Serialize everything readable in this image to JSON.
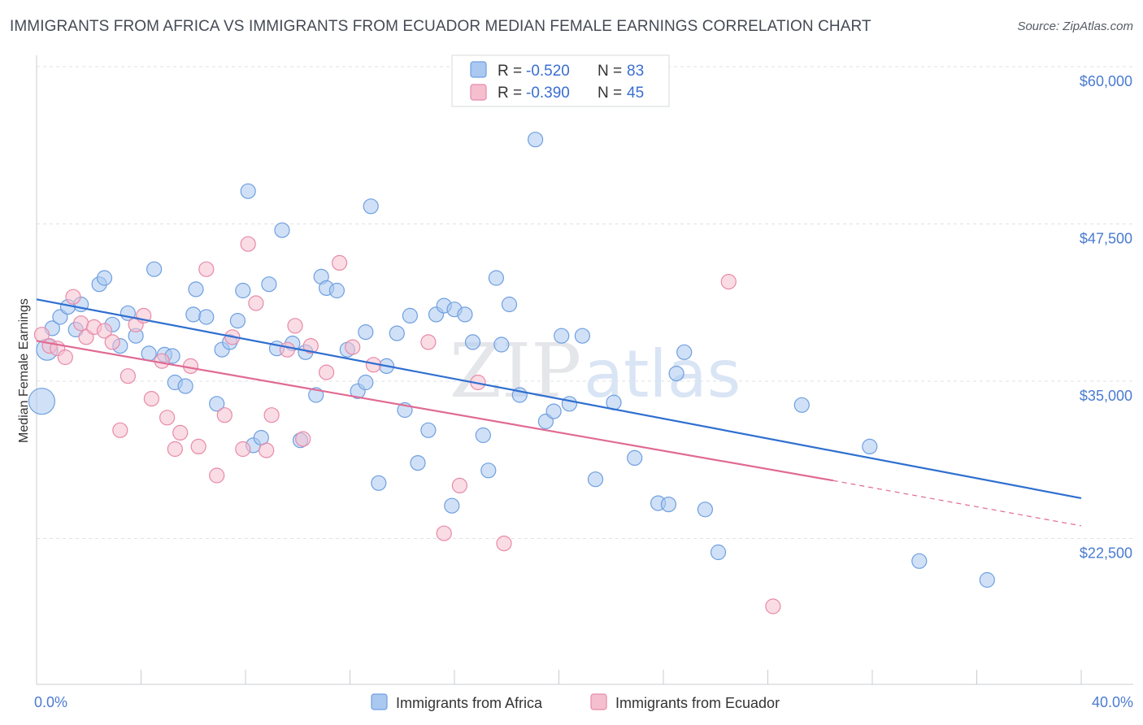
{
  "header": {
    "title": "IMMIGRANTS FROM AFRICA VS IMMIGRANTS FROM ECUADOR MEDIAN FEMALE EARNINGS CORRELATION CHART",
    "source": "Source: ZipAtlas.com"
  },
  "watermark": {
    "zip": "ZIP",
    "atlas": "atlas"
  },
  "chart_data": {
    "type": "scatter",
    "title": "IMMIGRANTS FROM AFRICA VS IMMIGRANTS FROM ECUADOR MEDIAN FEMALE EARNINGS CORRELATION CHART",
    "xlabel": "",
    "ylabel": "Median Female Earnings",
    "xlim": [
      0,
      40
    ],
    "ylim": [
      12000,
      62000
    ],
    "x_tick_labels": {
      "min": "0.0%",
      "max": "40.0%"
    },
    "y_ticks": [
      {
        "value": 22500,
        "label": "$22,500"
      },
      {
        "value": 35000,
        "label": "$35,000"
      },
      {
        "value": 47500,
        "label": "$47,500"
      },
      {
        "value": 60000,
        "label": "$60,000"
      }
    ],
    "grid": true,
    "legend_position": "top-center",
    "series": [
      {
        "name": "Immigrants from Africa",
        "color": "#6f9fe0",
        "fill": "#aac8f0",
        "line_color": "#2f6fd0",
        "r_label": "R =",
        "r_value": "-0.520",
        "n_label": "N =",
        "n_value": "83",
        "trend": {
          "x0": 0,
          "y0": 42600,
          "x1": 40,
          "y1": 26800,
          "dashed_from": null
        },
        "points": [
          [
            0.2,
            34500
          ],
          [
            0.4,
            38600
          ],
          [
            0.6,
            40300
          ],
          [
            0.9,
            41200
          ],
          [
            1.2,
            42000
          ],
          [
            1.7,
            42200
          ],
          [
            1.5,
            40200
          ],
          [
            2.4,
            43800
          ],
          [
            2.6,
            44300
          ],
          [
            2.9,
            40600
          ],
          [
            3.2,
            38900
          ],
          [
            3.5,
            41500
          ],
          [
            3.8,
            39700
          ],
          [
            4.3,
            38300
          ],
          [
            4.5,
            45000
          ],
          [
            4.9,
            38200
          ],
          [
            5.2,
            38100
          ],
          [
            5.3,
            36000
          ],
          [
            5.7,
            35700
          ],
          [
            6.0,
            41400
          ],
          [
            6.1,
            43400
          ],
          [
            6.5,
            41200
          ],
          [
            6.9,
            34300
          ],
          [
            7.1,
            38600
          ],
          [
            7.4,
            39200
          ],
          [
            7.7,
            40900
          ],
          [
            7.9,
            43300
          ],
          [
            8.1,
            51200
          ],
          [
            8.3,
            31000
          ],
          [
            8.6,
            31600
          ],
          [
            8.9,
            43800
          ],
          [
            9.2,
            38700
          ],
          [
            9.4,
            48100
          ],
          [
            9.8,
            39100
          ],
          [
            10.1,
            31400
          ],
          [
            10.3,
            38400
          ],
          [
            10.7,
            35000
          ],
          [
            10.9,
            44400
          ],
          [
            11.1,
            43500
          ],
          [
            11.5,
            43300
          ],
          [
            11.9,
            38600
          ],
          [
            12.3,
            35300
          ],
          [
            12.6,
            40000
          ],
          [
            12.8,
            50000
          ],
          [
            13.1,
            28000
          ],
          [
            13.4,
            37300
          ],
          [
            13.8,
            39900
          ],
          [
            14.1,
            33800
          ],
          [
            14.3,
            41300
          ],
          [
            14.6,
            29600
          ],
          [
            15.0,
            32200
          ],
          [
            15.3,
            41400
          ],
          [
            15.6,
            42100
          ],
          [
            15.9,
            26200
          ],
          [
            16.0,
            41800
          ],
          [
            16.4,
            41400
          ],
          [
            16.7,
            39200
          ],
          [
            17.1,
            31800
          ],
          [
            17.3,
            29000
          ],
          [
            17.6,
            44300
          ],
          [
            17.8,
            39000
          ],
          [
            18.1,
            42200
          ],
          [
            18.5,
            35000
          ],
          [
            19.1,
            55300
          ],
          [
            19.5,
            32900
          ],
          [
            19.8,
            33700
          ],
          [
            20.1,
            39700
          ],
          [
            20.4,
            34300
          ],
          [
            20.9,
            39700
          ],
          [
            21.4,
            28300
          ],
          [
            22.1,
            34400
          ],
          [
            22.9,
            30000
          ],
          [
            23.8,
            26400
          ],
          [
            24.2,
            26300
          ],
          [
            24.5,
            36700
          ],
          [
            24.8,
            38400
          ],
          [
            25.6,
            25900
          ],
          [
            26.1,
            22500
          ],
          [
            29.3,
            34200
          ],
          [
            31.9,
            30900
          ],
          [
            33.8,
            21800
          ],
          [
            36.4,
            20300
          ],
          [
            12.6,
            36000
          ]
        ]
      },
      {
        "name": "Immigrants from Ecuador",
        "color": "#e88aa8",
        "fill": "#f5bfd0",
        "line_color": "#e06a94",
        "r_label": "R =",
        "r_value": "-0.390",
        "n_label": "N =",
        "n_value": "45",
        "trend": {
          "x0": 0,
          "y0": 39300,
          "x1": 30.5,
          "y1": 28200,
          "dashed_to_x": 40,
          "dashed_to_y": 24600
        },
        "points": [
          [
            0.2,
            39800
          ],
          [
            0.5,
            38900
          ],
          [
            0.8,
            38700
          ],
          [
            1.1,
            38000
          ],
          [
            1.4,
            42800
          ],
          [
            1.7,
            40700
          ],
          [
            1.9,
            39600
          ],
          [
            2.2,
            40400
          ],
          [
            2.6,
            40100
          ],
          [
            2.9,
            39200
          ],
          [
            3.2,
            32200
          ],
          [
            3.5,
            36500
          ],
          [
            3.8,
            40600
          ],
          [
            4.1,
            41300
          ],
          [
            4.4,
            34700
          ],
          [
            4.8,
            37700
          ],
          [
            5.0,
            33200
          ],
          [
            5.3,
            30700
          ],
          [
            5.5,
            32000
          ],
          [
            5.9,
            37300
          ],
          [
            6.2,
            30900
          ],
          [
            6.5,
            45000
          ],
          [
            6.9,
            28600
          ],
          [
            7.2,
            33400
          ],
          [
            7.5,
            39600
          ],
          [
            7.9,
            30700
          ],
          [
            8.1,
            47000
          ],
          [
            8.4,
            42300
          ],
          [
            8.8,
            30600
          ],
          [
            9.0,
            33400
          ],
          [
            9.6,
            38600
          ],
          [
            9.9,
            40500
          ],
          [
            10.2,
            31500
          ],
          [
            10.5,
            38900
          ],
          [
            11.1,
            36800
          ],
          [
            11.6,
            45500
          ],
          [
            12.1,
            38800
          ],
          [
            12.9,
            37400
          ],
          [
            15.0,
            39200
          ],
          [
            15.6,
            24000
          ],
          [
            16.2,
            27800
          ],
          [
            16.9,
            36000
          ],
          [
            17.9,
            23200
          ],
          [
            26.5,
            44000
          ],
          [
            28.2,
            18200
          ]
        ]
      }
    ]
  }
}
